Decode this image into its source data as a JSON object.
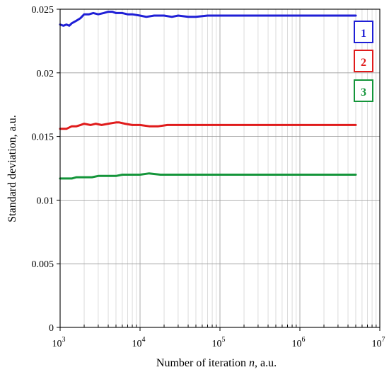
{
  "chart_data": {
    "type": "line",
    "xlabel_prefix": "Number of iteration ",
    "xlabel_var": "n",
    "xlabel_suffix": ", a.u.",
    "ylabel": "Standard deviation, a.u.",
    "xscale": "log",
    "xlim": [
      1000,
      10000000
    ],
    "ylim": [
      0,
      0.025
    ],
    "x_ticks": [
      {
        "value": 1000,
        "base": "10",
        "exp": "3"
      },
      {
        "value": 10000,
        "base": "10",
        "exp": "4"
      },
      {
        "value": 100000,
        "base": "10",
        "exp": "5"
      },
      {
        "value": 1000000,
        "base": "10",
        "exp": "6"
      },
      {
        "value": 10000000,
        "base": "10",
        "exp": "7"
      }
    ],
    "y_ticks": [
      {
        "value": 0,
        "label": "0"
      },
      {
        "value": 0.005,
        "label": "0.005"
      },
      {
        "value": 0.01,
        "label": "0.01"
      },
      {
        "value": 0.015,
        "label": "0.015"
      },
      {
        "value": 0.02,
        "label": "0.02"
      },
      {
        "value": 0.025,
        "label": "0.025"
      }
    ],
    "grid": true,
    "legend_position": "right",
    "series": [
      {
        "label": "1",
        "color": "#1f1fd6",
        "points": [
          [
            1000,
            0.0238
          ],
          [
            1100,
            0.0237
          ],
          [
            1200,
            0.0238
          ],
          [
            1300,
            0.0237
          ],
          [
            1400,
            0.0239
          ],
          [
            1600,
            0.0241
          ],
          [
            1800,
            0.0243
          ],
          [
            2000,
            0.0246
          ],
          [
            2300,
            0.0246
          ],
          [
            2600,
            0.0247
          ],
          [
            3000,
            0.0246
          ],
          [
            3500,
            0.0247
          ],
          [
            4000,
            0.0248
          ],
          [
            4500,
            0.0248
          ],
          [
            5000,
            0.0247
          ],
          [
            6000,
            0.0247
          ],
          [
            7000,
            0.0246
          ],
          [
            8000,
            0.0246
          ],
          [
            10000,
            0.0245
          ],
          [
            12000,
            0.0244
          ],
          [
            15000,
            0.0245
          ],
          [
            20000,
            0.0245
          ],
          [
            25000,
            0.0244
          ],
          [
            30000,
            0.0245
          ],
          [
            40000,
            0.0244
          ],
          [
            50000,
            0.0244
          ],
          [
            70000,
            0.0245
          ],
          [
            100000,
            0.0245
          ],
          [
            200000,
            0.0245
          ],
          [
            500000,
            0.0245
          ],
          [
            1000000,
            0.0245
          ],
          [
            2000000,
            0.0245
          ],
          [
            5000000,
            0.0245
          ]
        ]
      },
      {
        "label": "2",
        "color": "#e01b1b",
        "points": [
          [
            1000,
            0.0156
          ],
          [
            1200,
            0.0156
          ],
          [
            1400,
            0.0158
          ],
          [
            1600,
            0.0158
          ],
          [
            1800,
            0.0159
          ],
          [
            2000,
            0.016
          ],
          [
            2400,
            0.0159
          ],
          [
            2800,
            0.016
          ],
          [
            3300,
            0.0159
          ],
          [
            4000,
            0.016
          ],
          [
            5000,
            0.0161
          ],
          [
            5500,
            0.0161
          ],
          [
            6500,
            0.016
          ],
          [
            8000,
            0.0159
          ],
          [
            10000,
            0.0159
          ],
          [
            13000,
            0.0158
          ],
          [
            17000,
            0.0158
          ],
          [
            22000,
            0.0159
          ],
          [
            30000,
            0.0159
          ],
          [
            50000,
            0.0159
          ],
          [
            100000,
            0.0159
          ],
          [
            300000,
            0.0159
          ],
          [
            1000000,
            0.0159
          ],
          [
            5000000,
            0.0159
          ]
        ]
      },
      {
        "label": "3",
        "color": "#14953a",
        "points": [
          [
            1000,
            0.0117
          ],
          [
            1200,
            0.0117
          ],
          [
            1400,
            0.0117
          ],
          [
            1600,
            0.0118
          ],
          [
            2000,
            0.0118
          ],
          [
            2500,
            0.0118
          ],
          [
            3000,
            0.0119
          ],
          [
            4000,
            0.0119
          ],
          [
            5000,
            0.0119
          ],
          [
            6000,
            0.012
          ],
          [
            8000,
            0.012
          ],
          [
            10000,
            0.012
          ],
          [
            13000,
            0.0121
          ],
          [
            18000,
            0.012
          ],
          [
            25000,
            0.012
          ],
          [
            35000,
            0.012
          ],
          [
            60000,
            0.012
          ],
          [
            100000,
            0.012
          ],
          [
            300000,
            0.012
          ],
          [
            1000000,
            0.012
          ],
          [
            5000000,
            0.012
          ]
        ]
      }
    ]
  }
}
